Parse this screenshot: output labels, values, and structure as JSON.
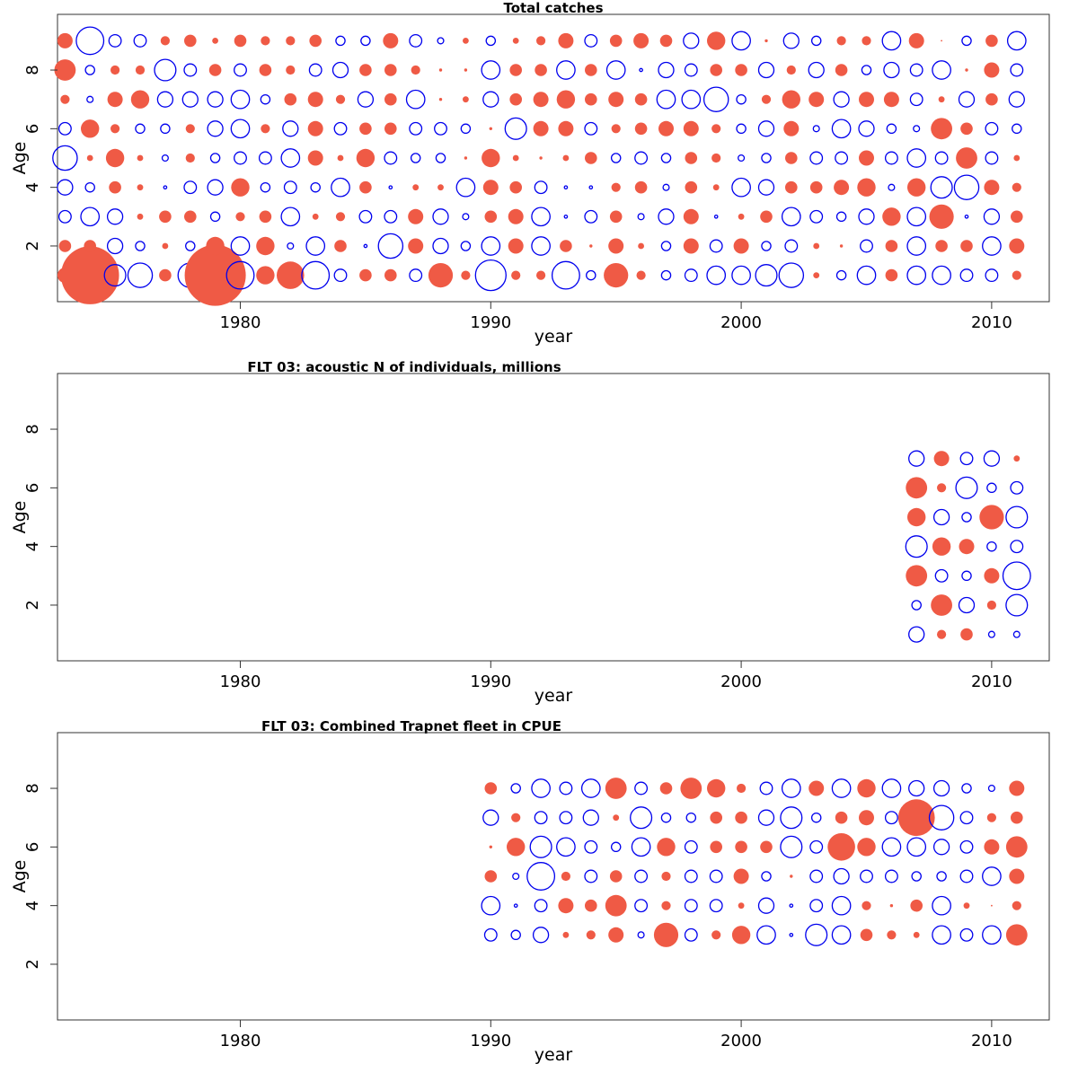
{
  "chart_data": [
    {
      "type": "bubble",
      "title": "Total catches",
      "xlabel": "year",
      "ylabel": "Age",
      "xlim": [
        1972.7,
        2012.3
      ],
      "ylim": [
        0.1,
        9.9
      ],
      "x_ticks": [
        1980,
        1990,
        2000,
        2010
      ],
      "y_ticks": [
        2,
        4,
        6,
        8
      ],
      "positive_color": "#ef5a45",
      "negative_color": "#0000ee",
      "encoding": "value = signed residual; filled red circle = positive, open blue circle = negative; radius proportional to magnitude",
      "years": [
        1973,
        1974,
        1975,
        1976,
        1977,
        1978,
        1979,
        1980,
        1981,
        1982,
        1983,
        1984,
        1985,
        1986,
        1987,
        1988,
        1989,
        1990,
        1991,
        1992,
        1993,
        1994,
        1995,
        1996,
        1997,
        1998,
        1999,
        2000,
        2001,
        2002,
        2003,
        2004,
        2005,
        2006,
        2007,
        2008,
        2009,
        2010,
        2011
      ],
      "ages": [
        1,
        2,
        3,
        4,
        5,
        6,
        7,
        8,
        9
      ],
      "values": [
        [
          0.5,
          1.9,
          -0.7,
          -0.8,
          0.4,
          -0.8,
          2.0,
          -0.9,
          0.6,
          0.9,
          -0.9,
          -0.4,
          0.4,
          0.4,
          -0.4,
          0.8,
          0.3,
          -1.0,
          0.3,
          0.3,
          -0.9,
          -0.3,
          0.8,
          0.3,
          -0.3,
          -0.4,
          -0.6,
          -0.6,
          -0.7,
          -0.8,
          0.2,
          -0.3,
          -0.6,
          0.4,
          -0.6,
          -0.6,
          -0.4,
          -0.4,
          0.3
        ],
        [
          0.4,
          0.4,
          -0.5,
          -0.3,
          0.2,
          -0.3,
          0.6,
          -0.6,
          0.6,
          -0.2,
          -0.6,
          0.4,
          -0.1,
          -0.8,
          0.5,
          -0.5,
          -0.3,
          -0.6,
          0.5,
          -0.6,
          0.4,
          0.1,
          0.5,
          0.2,
          -0.3,
          0.5,
          -0.4,
          0.5,
          -0.3,
          -0.4,
          0.2,
          0.1,
          -0.4,
          0.4,
          -0.6,
          0.4,
          0.4,
          -0.6,
          0.5
        ],
        [
          -0.4,
          -0.6,
          -0.5,
          0.2,
          0.4,
          0.4,
          -0.3,
          0.3,
          0.4,
          -0.6,
          0.2,
          0.3,
          -0.4,
          -0.4,
          0.5,
          -0.5,
          -0.2,
          0.4,
          0.5,
          -0.6,
          -0.1,
          -0.4,
          0.4,
          -0.2,
          -0.5,
          0.5,
          -0.1,
          0.2,
          0.4,
          -0.6,
          -0.4,
          -0.3,
          -0.5,
          0.6,
          -0.6,
          0.8,
          -0.1,
          -0.5,
          0.4
        ],
        [
          -0.5,
          -0.3,
          0.4,
          0.2,
          -0.1,
          -0.4,
          -0.5,
          0.6,
          -0.3,
          -0.4,
          -0.3,
          -0.6,
          0.4,
          -0.1,
          0.2,
          0.2,
          -0.6,
          0.5,
          0.4,
          -0.4,
          -0.1,
          -0.1,
          0.3,
          0.4,
          -0.2,
          0.4,
          0.2,
          -0.6,
          -0.5,
          0.4,
          0.4,
          0.5,
          0.6,
          -0.2,
          0.6,
          -0.7,
          -0.8,
          0.5,
          0.3
        ],
        [
          -0.8,
          0.2,
          0.6,
          0.2,
          -0.2,
          0.3,
          -0.3,
          -0.4,
          -0.4,
          -0.6,
          0.5,
          0.2,
          0.6,
          -0.4,
          -0.3,
          -0.3,
          0.1,
          0.6,
          0.2,
          0.1,
          0.2,
          0.4,
          -0.3,
          -0.4,
          -0.3,
          0.4,
          0.3,
          -0.2,
          -0.3,
          0.4,
          -0.4,
          -0.4,
          0.5,
          -0.4,
          -0.6,
          -0.4,
          0.7,
          -0.4,
          0.2
        ],
        [
          -0.4,
          0.6,
          0.3,
          -0.3,
          -0.3,
          0.3,
          -0.5,
          -0.6,
          0.3,
          -0.5,
          0.5,
          -0.4,
          0.4,
          0.4,
          -0.4,
          -0.4,
          -0.3,
          0.1,
          -0.7,
          0.5,
          0.5,
          -0.4,
          0.3,
          0.4,
          0.5,
          0.5,
          0.3,
          -0.3,
          -0.5,
          0.5,
          -0.2,
          -0.6,
          -0.5,
          -0.3,
          -0.2,
          0.7,
          0.4,
          -0.4,
          -0.3
        ],
        [
          0.3,
          -0.2,
          0.5,
          0.6,
          -0.5,
          -0.5,
          -0.5,
          -0.6,
          -0.3,
          0.4,
          0.5,
          0.3,
          -0.5,
          0.4,
          -0.6,
          0.1,
          0.2,
          -0.5,
          0.4,
          0.5,
          0.6,
          0.4,
          0.5,
          0.4,
          -0.6,
          -0.6,
          -0.8,
          -0.3,
          0.3,
          0.6,
          0.5,
          -0.5,
          0.5,
          0.5,
          -0.4,
          0.2,
          -0.5,
          0.4,
          -0.5
        ],
        [
          0.7,
          -0.3,
          0.3,
          0.3,
          -0.7,
          -0.4,
          0.4,
          -0.4,
          0.4,
          0.3,
          -0.4,
          -0.5,
          0.4,
          0.4,
          0.3,
          0.1,
          0.1,
          -0.6,
          0.4,
          0.4,
          -0.6,
          0.4,
          -0.6,
          -0.1,
          -0.5,
          -0.4,
          0.4,
          0.4,
          -0.5,
          0.3,
          -0.5,
          0.4,
          -0.3,
          -0.5,
          -0.4,
          -0.6,
          0.1,
          0.5,
          -0.4
        ],
        [
          0.5,
          -0.9,
          -0.4,
          -0.4,
          0.3,
          0.4,
          0.2,
          0.4,
          0.3,
          0.3,
          0.4,
          -0.3,
          -0.3,
          0.5,
          -0.4,
          -0.2,
          0.2,
          -0.3,
          0.2,
          0.3,
          0.5,
          -0.4,
          0.4,
          0.5,
          0.4,
          -0.5,
          0.6,
          -0.6,
          0.1,
          -0.5,
          -0.3,
          0.3,
          0.3,
          -0.6,
          0.5,
          0.05,
          -0.3,
          0.4,
          -0.6
        ]
      ]
    },
    {
      "type": "bubble",
      "title": "FLT 03:   acoustic   N of individuals, millions",
      "xlabel": "year",
      "ylabel": "Age",
      "xlim": [
        1972.7,
        2012.3
      ],
      "ylim": [
        0.1,
        9.9
      ],
      "x_ticks": [
        1980,
        1990,
        2000,
        2010
      ],
      "y_ticks": [
        2,
        4,
        6,
        8
      ],
      "positive_color": "#ef5a45",
      "negative_color": "#0000ee",
      "years": [
        2007,
        2008,
        2009,
        2010,
        2011
      ],
      "ages": [
        1,
        2,
        3,
        4,
        5,
        6,
        7
      ],
      "values": [
        [
          -0.5,
          0.3,
          0.4,
          -0.2,
          -0.2
        ],
        [
          -0.3,
          0.7,
          -0.5,
          0.3,
          -0.7
        ],
        [
          0.7,
          -0.4,
          -0.3,
          0.5,
          -0.9
        ],
        [
          -0.7,
          0.6,
          0.5,
          -0.3,
          -0.4
        ],
        [
          0.6,
          -0.5,
          -0.3,
          0.8,
          -0.7
        ],
        [
          0.7,
          0.3,
          -0.7,
          -0.3,
          -0.4
        ],
        [
          -0.5,
          0.5,
          -0.4,
          -0.5,
          0.2
        ]
      ]
    },
    {
      "type": "bubble",
      "title": "FLT 03: Combined Trapnet fleet in CPUE",
      "xlabel": "year",
      "ylabel": "Age",
      "xlim": [
        1972.7,
        2012.3
      ],
      "ylim": [
        0.1,
        9.9
      ],
      "x_ticks": [
        1980,
        1990,
        2000,
        2010
      ],
      "y_ticks": [
        2,
        4,
        6,
        8
      ],
      "positive_color": "#ef5a45",
      "negative_color": "#0000ee",
      "years": [
        1990,
        1991,
        1992,
        1993,
        1994,
        1995,
        1996,
        1997,
        1998,
        1999,
        2000,
        2001,
        2002,
        2003,
        2004,
        2005,
        2006,
        2007,
        2008,
        2009,
        2010,
        2011
      ],
      "ages": [
        3,
        4,
        5,
        6,
        7,
        8
      ],
      "values": [
        [
          -0.4,
          -0.3,
          -0.5,
          0.2,
          0.3,
          0.5,
          -0.2,
          0.8,
          -0.4,
          0.3,
          0.6,
          -0.6,
          -0.1,
          -0.7,
          -0.6,
          0.4,
          0.3,
          0.2,
          -0.6,
          -0.4,
          -0.6,
          0.7
        ],
        [
          -0.6,
          -0.1,
          -0.4,
          0.5,
          0.4,
          0.7,
          -0.4,
          0.3,
          -0.4,
          -0.4,
          0.2,
          -0.5,
          -0.1,
          -0.4,
          -0.6,
          0.3,
          0.1,
          0.4,
          -0.6,
          0.2,
          0.05,
          0.3
        ],
        [
          0.4,
          -0.2,
          -0.9,
          0.3,
          -0.4,
          0.4,
          -0.4,
          0.3,
          -0.4,
          -0.4,
          0.5,
          -0.3,
          0.1,
          -0.4,
          -0.5,
          -0.4,
          -0.4,
          -0.3,
          -0.3,
          -0.4,
          -0.6,
          0.5
        ],
        [
          0.1,
          0.6,
          -0.7,
          -0.6,
          -0.4,
          -0.3,
          -0.6,
          0.6,
          -0.4,
          0.4,
          0.4,
          0.4,
          -0.7,
          -0.4,
          0.9,
          0.6,
          -0.6,
          -0.6,
          -0.5,
          -0.4,
          0.5,
          0.7
        ],
        [
          -0.5,
          0.3,
          -0.4,
          -0.4,
          -0.5,
          0.2,
          -0.7,
          -0.3,
          -0.3,
          0.4,
          0.4,
          -0.5,
          -0.7,
          -0.3,
          0.4,
          0.5,
          -0.4,
          1.2,
          -0.8,
          -0.4,
          0.3,
          0.4
        ],
        [
          0.4,
          -0.3,
          -0.6,
          -0.4,
          -0.6,
          0.7,
          -0.4,
          0.4,
          0.7,
          0.6,
          0.3,
          -0.4,
          -0.6,
          0.5,
          -0.6,
          0.6,
          -0.6,
          -0.5,
          -0.5,
          -0.3,
          -0.2,
          0.5
        ]
      ]
    }
  ]
}
